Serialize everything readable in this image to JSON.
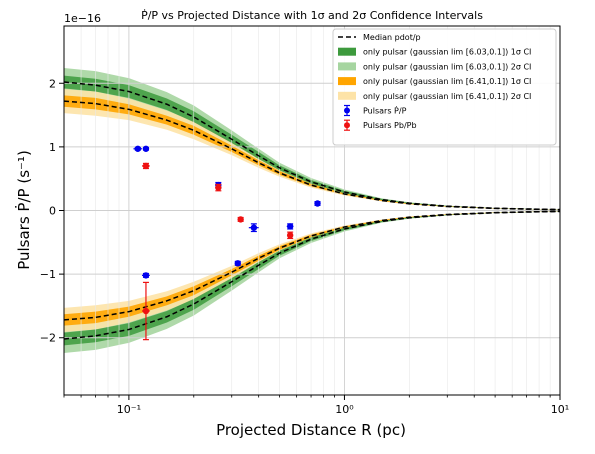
{
  "chart_data": {
    "type": "scatter",
    "title": "Ṗ/P vs Projected Distance with 1σ and 2σ Confidence Intervals",
    "xlabel": "Projected Distance R (pc)",
    "ylabel": "Pulsars Ṗ/P (s⁻¹)",
    "y_offset_label": "1e−16",
    "xscale": "log",
    "xlim": [
      0.05,
      10
    ],
    "ylim": [
      -2.9,
      2.9
    ],
    "x_ticks": [
      {
        "value": 0.1,
        "label": "10⁻¹"
      },
      {
        "value": 1,
        "label": "10⁰"
      },
      {
        "value": 10,
        "label": "10¹"
      }
    ],
    "y_ticks": [
      {
        "value": 2,
        "label": "2"
      },
      {
        "value": 1,
        "label": "1"
      },
      {
        "value": 0,
        "label": "0"
      },
      {
        "value": -1,
        "label": "−1"
      },
      {
        "value": -2,
        "label": "−2"
      }
    ],
    "colors": {
      "green_dark": "#3d9a3d",
      "green_light": "#a6d5a0",
      "orange_dark": "#ffa500",
      "orange_light": "#fde3a7",
      "blue": "#0000ee",
      "red": "#ee1111",
      "median": "#000000"
    },
    "legend": {
      "position": "top-right",
      "entries": [
        {
          "kind": "dash",
          "label": "Median pdot/p",
          "color": "#000000"
        },
        {
          "kind": "patch",
          "label": "only pulsar (gaussian lim [6.03,0.1]) 1σ CI",
          "color": "#3d9a3d"
        },
        {
          "kind": "patch",
          "label": "only pulsar (gaussian lim [6.03,0.1]) 2σ CI",
          "color": "#a6d5a0"
        },
        {
          "kind": "patch",
          "label": "only pulsar (gaussian lim [6.41,0.1]) 1σ CI",
          "color": "#ffa500"
        },
        {
          "kind": "patch",
          "label": "only pulsar (gaussian lim [6.41,0.1]) 2σ CI",
          "color": "#fde3a7"
        },
        {
          "kind": "point",
          "label": "Pulsars Ṗ/P",
          "color": "#0000ee"
        },
        {
          "kind": "point",
          "label": "Pulsars Pb/Pb",
          "color": "#ee1111"
        }
      ]
    },
    "model_x": [
      0.05,
      0.07,
      0.1,
      0.15,
      0.2,
      0.3,
      0.4,
      0.5,
      0.7,
      1.0,
      1.5,
      2.0,
      3.0,
      5.0,
      7.0,
      10.0
    ],
    "bands": [
      {
        "name": "only pulsar (gaussian lim [6.03,0.1])",
        "median": [
          2.02,
          1.97,
          1.87,
          1.67,
          1.47,
          1.12,
          0.86,
          0.67,
          0.45,
          0.29,
          0.17,
          0.115,
          0.068,
          0.036,
          0.024,
          0.015
        ],
        "ci1": [
          [
            1.92,
            2.12
          ],
          [
            1.87,
            2.07
          ],
          [
            1.77,
            1.97
          ],
          [
            1.58,
            1.76
          ],
          [
            1.39,
            1.56
          ],
          [
            1.06,
            1.19
          ],
          [
            0.81,
            0.92
          ],
          [
            0.63,
            0.71
          ],
          [
            0.42,
            0.48
          ],
          [
            0.27,
            0.31
          ],
          [
            0.16,
            0.18
          ],
          [
            0.108,
            0.122
          ],
          [
            0.064,
            0.072
          ],
          [
            0.034,
            0.038
          ],
          [
            0.023,
            0.025
          ],
          [
            0.014,
            0.016
          ]
        ],
        "ci2": [
          [
            1.8,
            2.24
          ],
          [
            1.75,
            2.19
          ],
          [
            1.66,
            2.08
          ],
          [
            1.48,
            1.86
          ],
          [
            1.3,
            1.65
          ],
          [
            0.99,
            1.26
          ],
          [
            0.76,
            0.97
          ],
          [
            0.59,
            0.75
          ],
          [
            0.39,
            0.51
          ],
          [
            0.25,
            0.33
          ],
          [
            0.15,
            0.19
          ],
          [
            0.1,
            0.13
          ],
          [
            0.06,
            0.076
          ],
          [
            0.032,
            0.04
          ],
          [
            0.021,
            0.027
          ],
          [
            0.013,
            0.017
          ]
        ]
      },
      {
        "name": "only pulsar (gaussian lim [6.41,0.1])",
        "median": [
          1.72,
          1.68,
          1.59,
          1.42,
          1.26,
          0.97,
          0.75,
          0.59,
          0.4,
          0.26,
          0.155,
          0.105,
          0.062,
          0.033,
          0.022,
          0.014
        ],
        "ci1": [
          [
            1.63,
            1.81
          ],
          [
            1.59,
            1.77
          ],
          [
            1.51,
            1.67
          ],
          [
            1.35,
            1.49
          ],
          [
            1.19,
            1.33
          ],
          [
            0.92,
            1.02
          ],
          [
            0.71,
            0.79
          ],
          [
            0.56,
            0.62
          ],
          [
            0.38,
            0.42
          ],
          [
            0.25,
            0.27
          ],
          [
            0.148,
            0.162
          ],
          [
            0.1,
            0.11
          ],
          [
            0.059,
            0.065
          ],
          [
            0.031,
            0.035
          ],
          [
            0.021,
            0.023
          ],
          [
            0.013,
            0.015
          ]
        ],
        "ci2": [
          [
            1.53,
            1.91
          ],
          [
            1.49,
            1.87
          ],
          [
            1.42,
            1.76
          ],
          [
            1.27,
            1.57
          ],
          [
            1.12,
            1.4
          ],
          [
            0.87,
            1.07
          ],
          [
            0.67,
            0.83
          ],
          [
            0.53,
            0.65
          ],
          [
            0.36,
            0.44
          ],
          [
            0.235,
            0.285
          ],
          [
            0.14,
            0.17
          ],
          [
            0.095,
            0.115
          ],
          [
            0.056,
            0.068
          ],
          [
            0.03,
            0.036
          ],
          [
            0.02,
            0.024
          ],
          [
            0.012,
            0.016
          ]
        ]
      }
    ],
    "series": [
      {
        "name": "Pulsars Ṗ/P",
        "color": "#0000ee",
        "points": [
          {
            "x": 0.11,
            "y": 0.97,
            "xerr": 0.005,
            "yerr": 0.02
          },
          {
            "x": 0.12,
            "y": 0.97,
            "xerr": 0.004,
            "yerr": 0.02
          },
          {
            "x": 0.26,
            "y": 0.4,
            "xerr": 0.005,
            "yerr": 0.04
          },
          {
            "x": 0.32,
            "y": -0.83,
            "xerr": 0.006,
            "yerr": 0.03
          },
          {
            "x": 0.38,
            "y": -0.27,
            "xerr": 0.02,
            "yerr": 0.06
          },
          {
            "x": 0.56,
            "y": -0.25,
            "xerr": 0.02,
            "yerr": 0.04
          },
          {
            "x": 0.75,
            "y": 0.11,
            "xerr": 0.02,
            "yerr": 0.03
          },
          {
            "x": 0.12,
            "y": -1.02,
            "xerr": 0.005,
            "yerr": 0.03
          }
        ]
      },
      {
        "name": "Pulsars Pb/Pb",
        "color": "#ee1111",
        "points": [
          {
            "x": 0.12,
            "y": 0.7,
            "xerr": 0.005,
            "yerr": 0.04
          },
          {
            "x": 0.26,
            "y": 0.36,
            "xerr": 0.006,
            "yerr": 0.05
          },
          {
            "x": 0.33,
            "y": -0.14,
            "xerr": 0.008,
            "yerr": 0.03
          },
          {
            "x": 0.56,
            "y": -0.39,
            "xerr": 0.01,
            "yerr": 0.05
          },
          {
            "x": 0.12,
            "y": -1.58,
            "xerr": 0.005,
            "yerr": 0.45
          }
        ]
      }
    ]
  }
}
